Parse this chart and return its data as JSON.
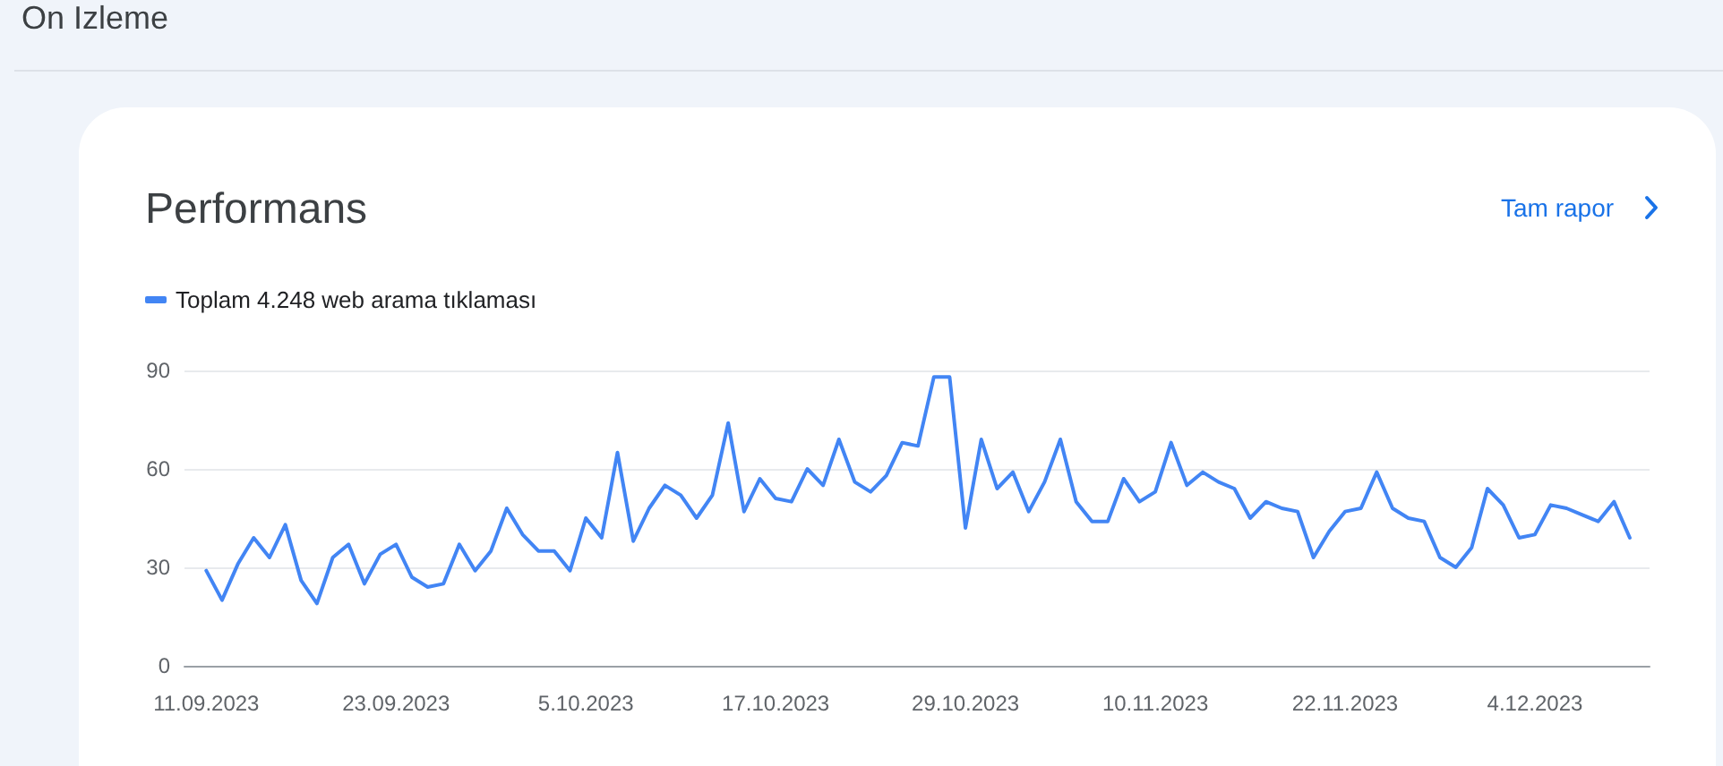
{
  "chart_data": {
    "type": "line",
    "title": "Performans",
    "annotations": [
      "On Izleme",
      "Tam rapor"
    ],
    "x": [
      "2023-09-11",
      "2023-09-12",
      "2023-09-13",
      "2023-09-14",
      "2023-09-15",
      "2023-09-16",
      "2023-09-17",
      "2023-09-18",
      "2023-09-19",
      "2023-09-20",
      "2023-09-21",
      "2023-09-22",
      "2023-09-23",
      "2023-09-24",
      "2023-09-25",
      "2023-09-26",
      "2023-09-27",
      "2023-09-28",
      "2023-09-29",
      "2023-09-30",
      "2023-10-01",
      "2023-10-02",
      "2023-10-03",
      "2023-10-04",
      "2023-10-05",
      "2023-10-06",
      "2023-10-07",
      "2023-10-08",
      "2023-10-09",
      "2023-10-10",
      "2023-10-11",
      "2023-10-12",
      "2023-10-13",
      "2023-10-14",
      "2023-10-15",
      "2023-10-16",
      "2023-10-17",
      "2023-10-18",
      "2023-10-19",
      "2023-10-20",
      "2023-10-21",
      "2023-10-22",
      "2023-10-23",
      "2023-10-24",
      "2023-10-25",
      "2023-10-26",
      "2023-10-27",
      "2023-10-28",
      "2023-10-29",
      "2023-10-30",
      "2023-10-31",
      "2023-11-01",
      "2023-11-02",
      "2023-11-03",
      "2023-11-04",
      "2023-11-05",
      "2023-11-06",
      "2023-11-07",
      "2023-11-08",
      "2023-11-09",
      "2023-11-10",
      "2023-11-11",
      "2023-11-12",
      "2023-11-13",
      "2023-11-14",
      "2023-11-15",
      "2023-11-16",
      "2023-11-17",
      "2023-11-18",
      "2023-11-19",
      "2023-11-20",
      "2023-11-21",
      "2023-11-22",
      "2023-11-23",
      "2023-11-24",
      "2023-11-25",
      "2023-11-26",
      "2023-11-27",
      "2023-11-28",
      "2023-11-29",
      "2023-11-30",
      "2023-12-01",
      "2023-12-02",
      "2023-12-03",
      "2023-12-04",
      "2023-12-05",
      "2023-12-06",
      "2023-12-07",
      "2023-12-08",
      "2023-12-09",
      "2023-12-10"
    ],
    "series": [
      {
        "name": "Toplam 4.248 web arama tıklaması",
        "color": "#4285f4",
        "values": [
          29,
          20,
          31,
          39,
          33,
          43,
          26,
          19,
          33,
          37,
          25,
          34,
          37,
          27,
          24,
          25,
          37,
          29,
          35,
          48,
          40,
          35,
          35,
          29,
          45,
          39,
          65,
          38,
          48,
          55,
          52,
          45,
          52,
          74,
          47,
          57,
          51,
          50,
          60,
          55,
          69,
          56,
          53,
          58,
          68,
          67,
          88,
          88,
          42,
          69,
          54,
          59,
          47,
          56,
          69,
          50,
          44,
          44,
          57,
          50,
          53,
          68,
          55,
          59,
          56,
          54,
          45,
          50,
          48,
          47,
          33,
          41,
          47,
          48,
          59,
          48,
          45,
          44,
          33,
          30,
          36,
          54,
          49,
          39,
          40,
          49,
          48,
          46,
          44,
          50,
          39
        ]
      }
    ],
    "xlim": [
      "2023-09-09T15:00",
      "2023-12-11T06:00"
    ],
    "xticks": [
      {
        "value": "2023-09-11",
        "label": "11.09.2023"
      },
      {
        "value": "2023-09-23",
        "label": "23.09.2023"
      },
      {
        "value": "2023-10-05",
        "label": "5.10.2023"
      },
      {
        "value": "2023-10-17",
        "label": "17.10.2023"
      },
      {
        "value": "2023-10-29",
        "label": "29.10.2023"
      },
      {
        "value": "2023-11-10",
        "label": "10.11.2023"
      },
      {
        "value": "2023-11-22",
        "label": "22.11.2023"
      },
      {
        "value": "2023-12-04",
        "label": "4.12.2023"
      }
    ],
    "ylim": [
      0,
      90
    ],
    "yticks": [
      0,
      30,
      60,
      90
    ],
    "grid": "y",
    "legend": "top left",
    "marker": "none",
    "line_style": "solid"
  }
}
